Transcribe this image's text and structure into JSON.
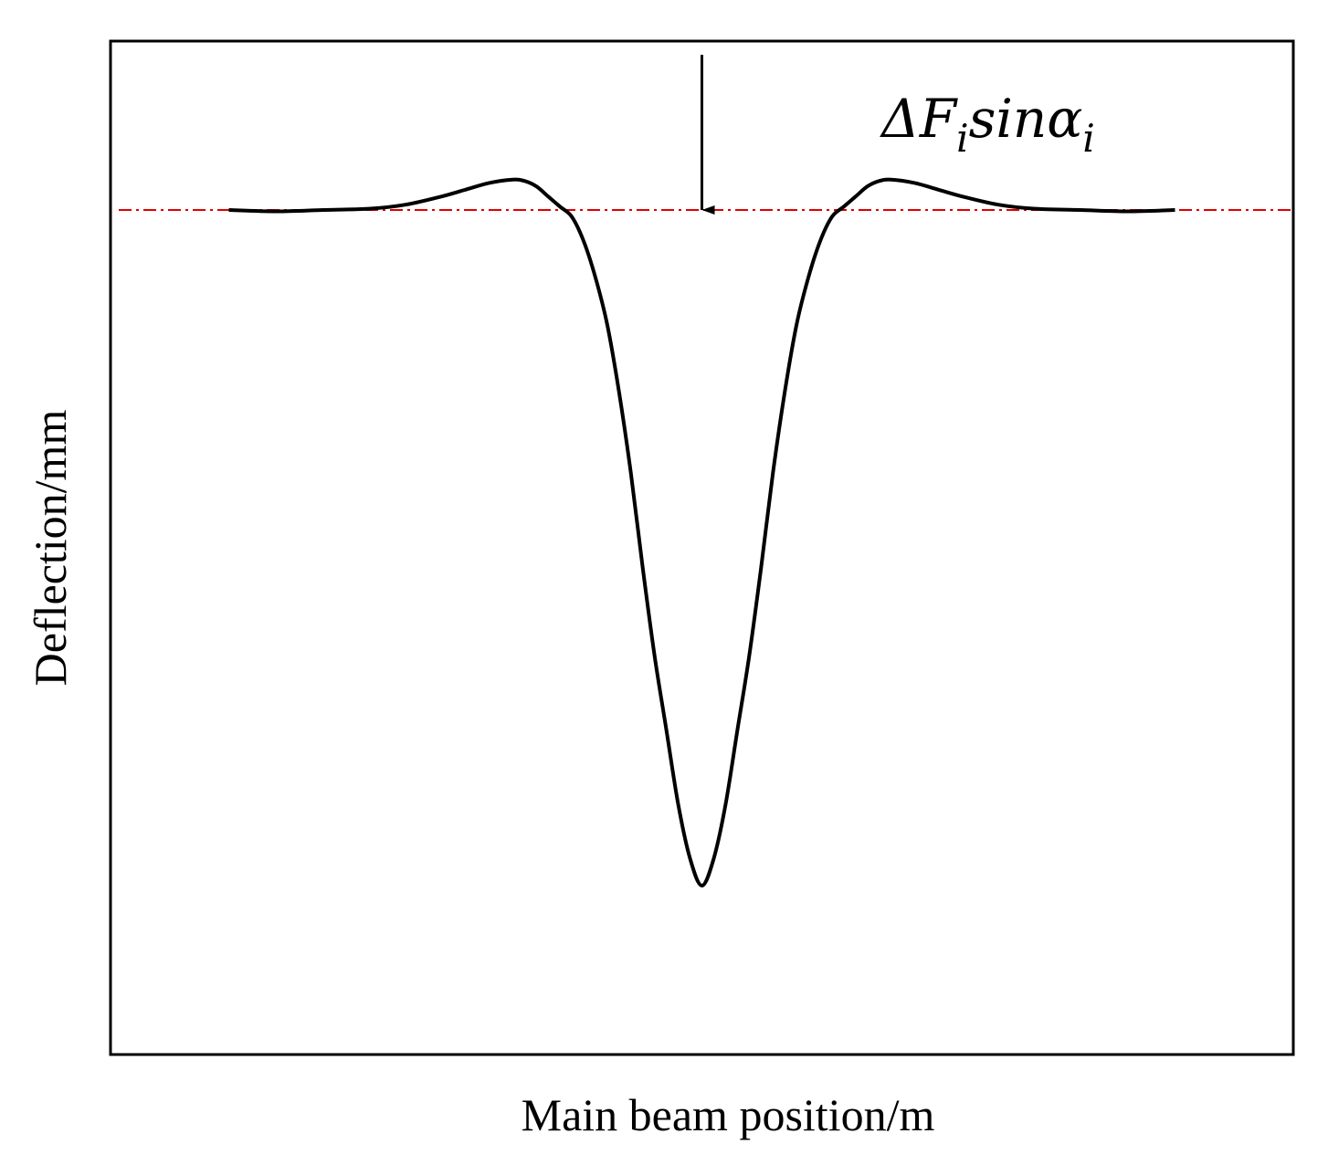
{
  "chart_data": {
    "type": "line",
    "x_label": "Main beam position/m",
    "y_label": "Deflection/mm",
    "annotation": {
      "parts": [
        "ΔF",
        "i",
        "sinα",
        "i"
      ]
    },
    "xlim": [
      0,
      100
    ],
    "ylim": [
      -1.25,
      0.25
    ],
    "reference_line": 0,
    "reference_color": "#e00000",
    "arrow_x": 50,
    "x": [
      10,
      14,
      18,
      22,
      25,
      28,
      30,
      32,
      34,
      35,
      36,
      37,
      38,
      39,
      40,
      41,
      42,
      43,
      44,
      45,
      46,
      47,
      48,
      49,
      50,
      51,
      52,
      53,
      54,
      55,
      56,
      57,
      58,
      59,
      60,
      61,
      62,
      63,
      64,
      65,
      66,
      68,
      70,
      72,
      75,
      78,
      82,
      86,
      90
    ],
    "series": [
      {
        "color": "#000000",
        "values": [
          0,
          -0.002,
          0,
          0.002,
          0.008,
          0.02,
          0.03,
          0.04,
          0.045,
          0.043,
          0.035,
          0.02,
          0.005,
          -0.01,
          -0.046,
          -0.1,
          -0.17,
          -0.27,
          -0.39,
          -0.53,
          -0.66,
          -0.77,
          -0.88,
          -0.96,
          -1.0,
          -0.96,
          -0.88,
          -0.77,
          -0.66,
          -0.53,
          -0.39,
          -0.27,
          -0.17,
          -0.1,
          -0.046,
          -0.01,
          0.005,
          0.02,
          0.035,
          0.043,
          0.045,
          0.04,
          0.03,
          0.02,
          0.008,
          0.002,
          0,
          -0.002,
          0
        ]
      }
    ]
  }
}
